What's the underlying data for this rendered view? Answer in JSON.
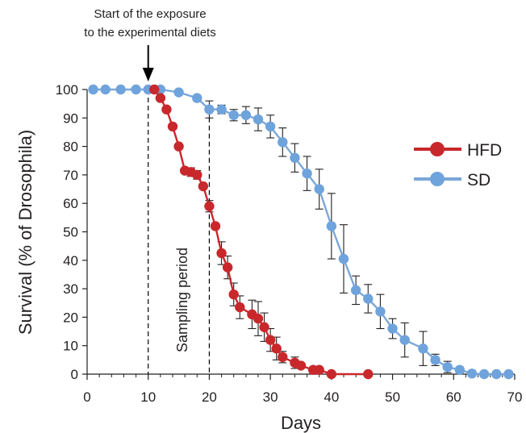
{
  "chart_data": {
    "type": "line",
    "title": "",
    "xlabel": "Days",
    "ylabel": "Survival (% of Drosophila)",
    "xlim": [
      0,
      70
    ],
    "ylim": [
      0,
      100
    ],
    "x_ticks": [
      0,
      10,
      20,
      30,
      40,
      50,
      60,
      70
    ],
    "y_ticks": [
      0,
      10,
      20,
      30,
      40,
      50,
      60,
      70,
      80,
      90,
      100
    ],
    "grid": false,
    "legend_position": "right",
    "annotations": {
      "exposure_line1": "Start of the exposure",
      "exposure_line2": "to the experimental diets",
      "exposure_day": 10,
      "sampling_label": "Sampling period",
      "sampling_start": 10,
      "sampling_end": 20
    },
    "series": [
      {
        "name": "SD",
        "color": "#6fa3dc",
        "line_color": "#7aa7d8",
        "x": [
          1,
          3,
          5.5,
          8,
          10,
          12,
          15,
          18,
          20,
          22,
          24,
          26,
          28,
          30,
          32,
          34,
          36,
          38,
          40,
          42,
          44,
          46,
          48,
          50,
          52,
          55,
          57,
          59,
          61,
          63,
          65,
          67,
          69
        ],
        "y": [
          100,
          100,
          100,
          100,
          100,
          100,
          99,
          97,
          93,
          93,
          91,
          91,
          89.5,
          87,
          81.5,
          76,
          70.5,
          65,
          52,
          40.5,
          29.5,
          26.5,
          22,
          16,
          12,
          9,
          5,
          2.5,
          1.5,
          0.2,
          0,
          0,
          0
        ],
        "error": [
          0,
          0,
          0,
          0,
          0,
          0,
          0,
          1,
          3,
          1.5,
          2,
          3,
          4,
          4,
          5,
          5,
          6,
          7,
          11.5,
          12,
          5,
          5,
          6,
          3.5,
          6,
          6,
          2,
          2,
          1,
          1,
          0,
          0,
          0
        ]
      },
      {
        "name": "HFD",
        "color": "#c8282c",
        "line_color": "#c8282c",
        "x": [
          11,
          12,
          13,
          14,
          15,
          16,
          17,
          18,
          19,
          20,
          21,
          22,
          23,
          24,
          25,
          27,
          28,
          29,
          30,
          31,
          32,
          34,
          35,
          37,
          38,
          40,
          46
        ],
        "y": [
          100,
          97,
          93,
          87,
          80,
          71.5,
          71,
          70,
          66,
          59,
          52,
          42.5,
          37.5,
          28,
          23.5,
          21,
          19.5,
          16.5,
          12,
          9,
          6,
          4,
          3,
          1.5,
          1.5,
          0,
          0
        ],
        "error": [
          0,
          0,
          0,
          0,
          0,
          0,
          1.5,
          1.5,
          0,
          2,
          0,
          4,
          4,
          4,
          4,
          5,
          6,
          5,
          4,
          4,
          2,
          2,
          0,
          0,
          0,
          0,
          0
        ]
      }
    ]
  }
}
